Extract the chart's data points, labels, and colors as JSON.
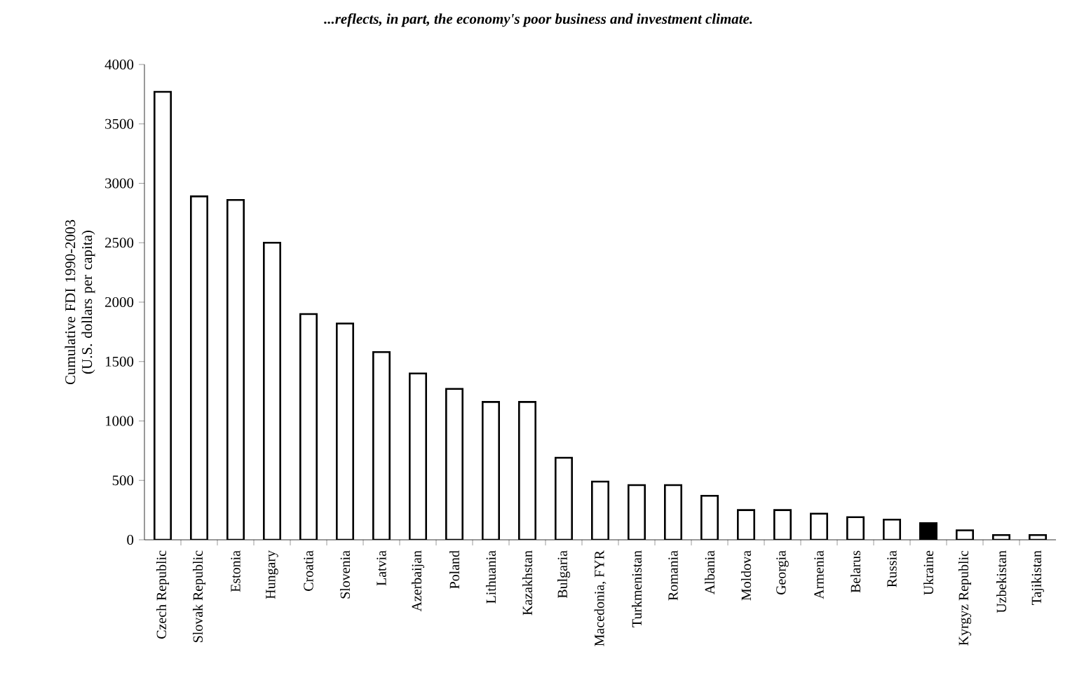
{
  "chart_data": {
    "type": "bar",
    "title": "...reflects, in part, the economy's poor business and investment climate.",
    "ylabel": "Cumulative FDI 1990-2003 (U.S. dollars per capita)",
    "categories": [
      "Czech Republic",
      "Slovak Republic",
      "Estonia",
      "Hungary",
      "Croatia",
      "Slovenia",
      "Latvia",
      "Azerbaijan",
      "Poland",
      "Lithuania",
      "Kazakhstan",
      "Bulgaria",
      "Macedonia, FYR",
      "Turkmenistan",
      "Romania",
      "Albania",
      "Moldova",
      "Georgia",
      "Armenia",
      "Belarus",
      "Russia",
      "Ukraine",
      "Kyrgyz Republic",
      "Uzbekistan",
      "Tajikistan"
    ],
    "values": [
      3770,
      2890,
      2860,
      2500,
      1900,
      1820,
      1580,
      1400,
      1270,
      1160,
      1160,
      690,
      490,
      460,
      460,
      370,
      250,
      250,
      220,
      190,
      170,
      140,
      80,
      40,
      40
    ],
    "colors": [
      "#ffffff",
      "#ffffff",
      "#ffffff",
      "#ffffff",
      "#ffffff",
      "#ffffff",
      "#ffffff",
      "#ffffff",
      "#ffffff",
      "#ffffff",
      "#ffffff",
      "#ffffff",
      "#ffffff",
      "#ffffff",
      "#ffffff",
      "#ffffff",
      "#ffffff",
      "#ffffff",
      "#ffffff",
      "#ffffff",
      "#ffffff",
      "#000000",
      "#ffffff",
      "#ffffff",
      "#ffffff"
    ],
    "ylim": [
      0,
      4000
    ],
    "yticks": [
      0,
      500,
      1000,
      1500,
      2000,
      2500,
      3000,
      3500,
      4000
    ]
  }
}
